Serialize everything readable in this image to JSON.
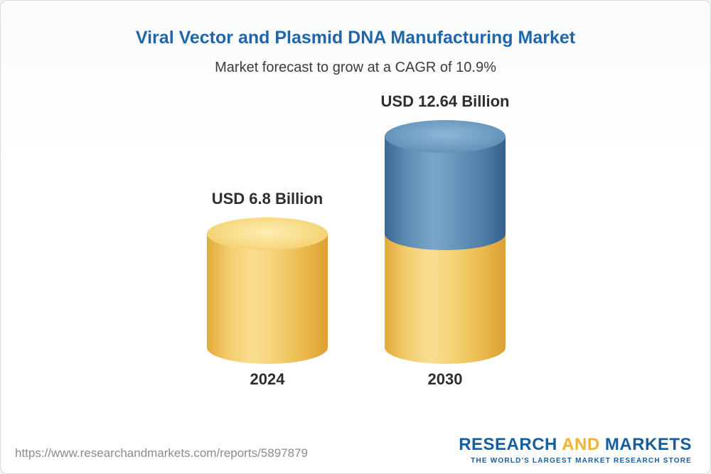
{
  "title": "Viral Vector and Plasmid DNA Manufacturing Market",
  "subtitle": "Market forecast to grow at a CAGR of 10.9%",
  "footer": {
    "url": "https://www.researchandmarkets.com/reports/5897879",
    "logo": {
      "part1": "RESEARCH ",
      "part2": "AND",
      "part3": " MARKETS",
      "tagline": "THE WORLD'S LARGEST MARKET RESEARCH STORE"
    }
  },
  "colors": {
    "title_blue": "#1f66ab",
    "bar_gold": "#f2c95c",
    "bar_blue": "#5e8db5",
    "logo_blue": "#175e9e",
    "logo_yellow": "#f2b230"
  },
  "chart_data": {
    "type": "bar",
    "subtype": "3d-cylinder",
    "title": "Viral Vector and Plasmid DNA Manufacturing Market",
    "subtitle": "Market forecast to grow at a CAGR of 10.9%",
    "cagr_percent": 10.9,
    "unit": "USD Billion",
    "categories": [
      "2024",
      "2030"
    ],
    "values": [
      6.8,
      12.64
    ],
    "ylim": [
      0,
      13
    ],
    "legend": "none",
    "grid": false,
    "points": [
      {
        "year": "2024",
        "value": 6.8,
        "label": "USD 6.8 Billion",
        "segments": [
          {
            "color": "gold",
            "value": 6.8
          }
        ]
      },
      {
        "year": "2030",
        "value": 12.64,
        "label": "USD 12.64 Billion",
        "segments": [
          {
            "color": "gold",
            "value": 6.8
          },
          {
            "color": "blue",
            "value": 5.84
          }
        ]
      }
    ]
  }
}
